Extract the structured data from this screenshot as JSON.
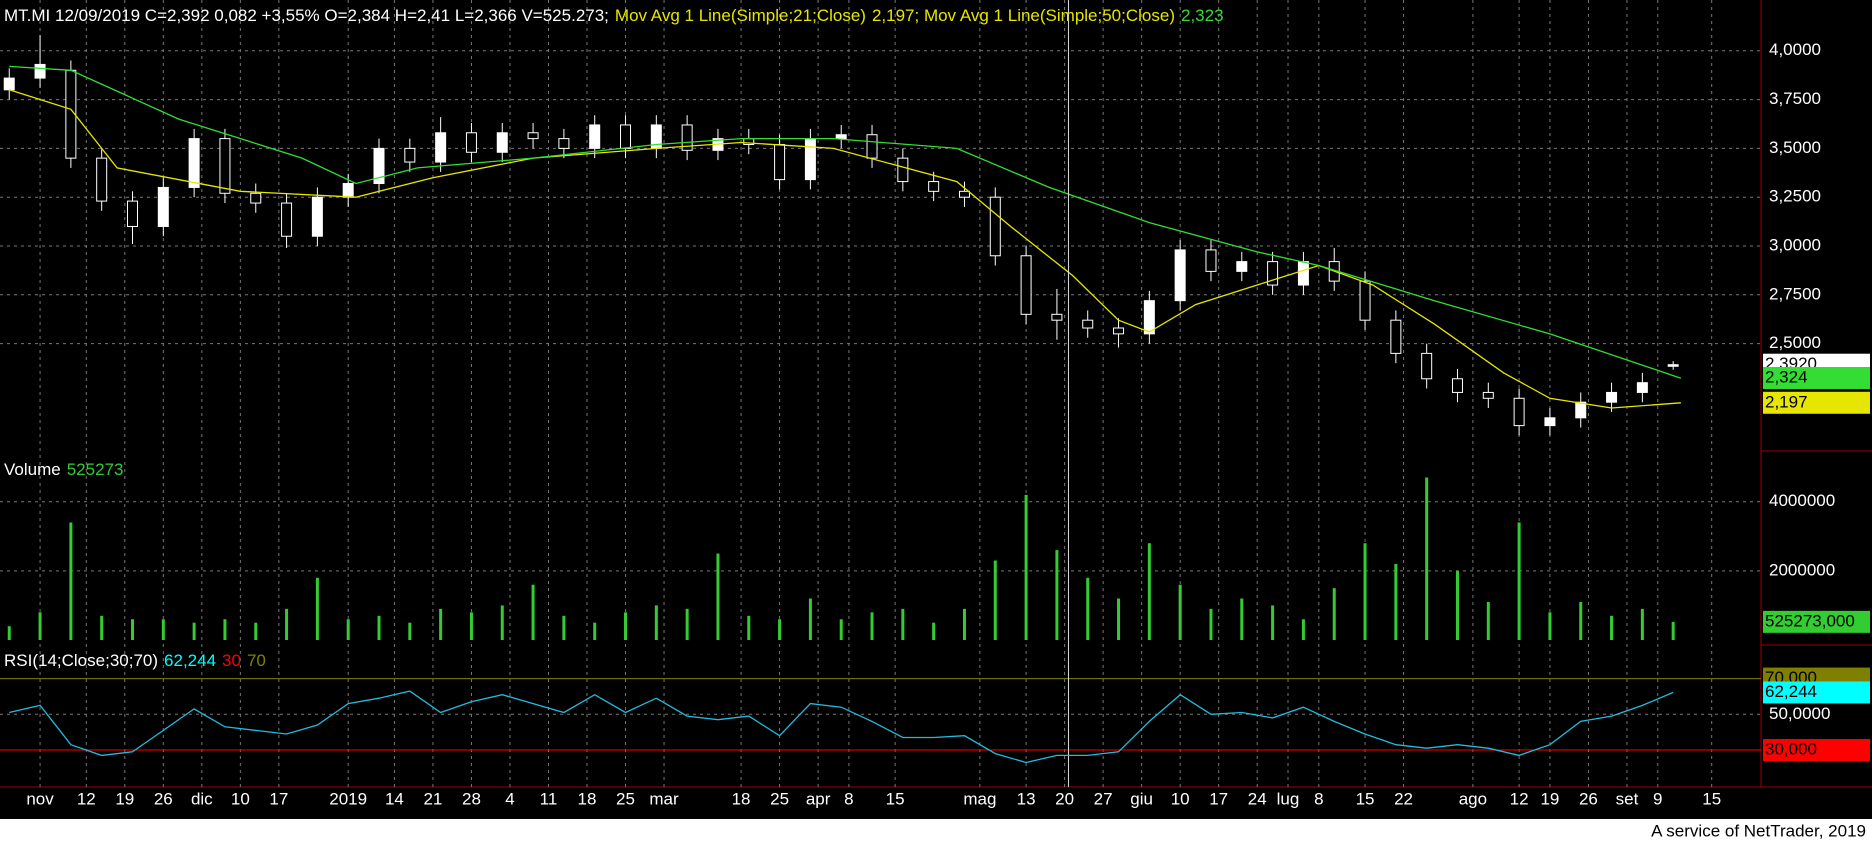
{
  "chart_data": [
    {
      "type": "candlestick",
      "title": "MT.MI 12/09/2019 C=2,392 0,082 +3,55% O=2,384 H=2,41 L=2,366 V=525.273;",
      "x": [
        0,
        4,
        8,
        12,
        16,
        20,
        24,
        28,
        32,
        36,
        40,
        44,
        48,
        52,
        56,
        60,
        64,
        68,
        72,
        76,
        80,
        84,
        88,
        92,
        96,
        100,
        104,
        108,
        112,
        116,
        120,
        124,
        128,
        132,
        136,
        140,
        144,
        148,
        152,
        156,
        160,
        164,
        168,
        172,
        176,
        180,
        184,
        188,
        192,
        196,
        200,
        204,
        208,
        212,
        216
      ],
      "open": [
        3.8,
        3.86,
        3.9,
        3.45,
        3.23,
        3.1,
        3.3,
        3.55,
        3.27,
        3.22,
        3.05,
        3.25,
        3.32,
        3.5,
        3.43,
        3.58,
        3.48,
        3.58,
        3.55,
        3.5,
        3.62,
        3.5,
        3.62,
        3.49,
        3.55,
        3.52,
        3.34,
        3.55,
        3.57,
        3.45,
        3.33,
        3.28,
        3.25,
        2.95,
        2.65,
        2.62,
        2.58,
        2.55,
        2.72,
        2.98,
        2.87,
        2.92,
        2.8,
        2.92,
        2.82,
        2.62,
        2.45,
        2.32,
        2.25,
        2.22,
        2.08,
        2.12,
        2.2,
        2.25,
        2.384
      ],
      "high": [
        3.91,
        4.08,
        3.95,
        3.5,
        3.28,
        3.35,
        3.6,
        3.6,
        3.32,
        3.27,
        3.3,
        3.37,
        3.55,
        3.55,
        3.66,
        3.63,
        3.63,
        3.63,
        3.6,
        3.67,
        3.67,
        3.67,
        3.67,
        3.6,
        3.6,
        3.57,
        3.6,
        3.62,
        3.62,
        3.5,
        3.38,
        3.33,
        3.3,
        3.0,
        2.78,
        2.67,
        2.63,
        2.77,
        3.03,
        3.03,
        2.97,
        2.97,
        2.97,
        2.99,
        2.87,
        2.67,
        2.5,
        2.37,
        2.3,
        2.27,
        2.17,
        2.25,
        2.3,
        2.35,
        2.41
      ],
      "low": [
        3.75,
        3.81,
        3.4,
        3.18,
        3.01,
        3.05,
        3.25,
        3.22,
        3.17,
        2.99,
        3.0,
        3.2,
        3.27,
        3.38,
        3.38,
        3.43,
        3.43,
        3.5,
        3.45,
        3.45,
        3.45,
        3.45,
        3.44,
        3.44,
        3.47,
        3.29,
        3.29,
        3.5,
        3.4,
        3.28,
        3.23,
        3.2,
        2.9,
        2.6,
        2.52,
        2.53,
        2.48,
        2.5,
        2.67,
        2.82,
        2.82,
        2.75,
        2.75,
        2.77,
        2.57,
        2.4,
        2.27,
        2.2,
        2.17,
        2.03,
        2.03,
        2.07,
        2.15,
        2.2,
        2.366
      ],
      "close": [
        3.86,
        3.93,
        3.45,
        3.23,
        3.1,
        3.3,
        3.55,
        3.27,
        3.22,
        3.05,
        3.25,
        3.32,
        3.5,
        3.43,
        3.58,
        3.48,
        3.58,
        3.55,
        3.5,
        3.62,
        3.5,
        3.62,
        3.49,
        3.55,
        3.52,
        3.34,
        3.55,
        3.57,
        3.45,
        3.33,
        3.28,
        3.25,
        2.95,
        2.65,
        2.62,
        2.58,
        2.55,
        2.72,
        2.98,
        2.87,
        2.92,
        2.8,
        2.92,
        2.82,
        2.62,
        2.45,
        2.32,
        2.25,
        2.22,
        2.08,
        2.12,
        2.2,
        2.25,
        2.3,
        2.392
      ],
      "color": "#ffffff",
      "last": {
        "value": 2.392,
        "label": "2,3920"
      },
      "legend_text_color": "#e6e600",
      "series": [
        {
          "name": "Mov Avg 1 Line(Simple;21;Close)",
          "color": "#e6e600",
          "x": [
            0,
            8,
            14,
            30,
            45,
            55,
            68,
            84,
            95,
            107,
            123,
            130,
            138,
            144,
            148,
            154,
            162,
            170,
            177,
            185,
            194,
            200,
            208,
            217
          ],
          "values": [
            3.8,
            3.7,
            3.4,
            3.28,
            3.25,
            3.35,
            3.45,
            3.5,
            3.53,
            3.5,
            3.33,
            3.1,
            2.85,
            2.62,
            2.56,
            2.7,
            2.8,
            2.9,
            2.8,
            2.6,
            2.35,
            2.22,
            2.17,
            2.197
          ],
          "legend_value": "2,197",
          "axis_label": {
            "value": 2.197,
            "label": "2,197"
          }
        },
        {
          "name": "; Mov Avg 1 Line(Simple;50;Close)",
          "color": "#33dd33",
          "x": [
            0,
            8,
            22,
            38,
            45,
            53,
            68,
            84,
            95,
            107,
            123,
            135,
            148,
            162,
            170,
            185,
            200,
            217
          ],
          "values": [
            3.92,
            3.9,
            3.65,
            3.45,
            3.32,
            3.4,
            3.45,
            3.52,
            3.55,
            3.55,
            3.5,
            3.3,
            3.12,
            2.97,
            2.9,
            2.72,
            2.55,
            2.323
          ],
          "legend_value": "2,323",
          "axis_label": {
            "value": 2.324,
            "label": "2,324"
          }
        }
      ],
      "xlim": [
        -1.2,
        227.4
      ],
      "ylim": [
        1.95,
        4.26
      ],
      "yticks": [
        {
          "value": 2.5,
          "label": "2,5000"
        },
        {
          "value": 2.75,
          "label": "2,7500"
        },
        {
          "value": 3.0,
          "label": "3,0000"
        },
        {
          "value": 3.25,
          "label": "3,2500"
        },
        {
          "value": 3.5,
          "label": "3,5000"
        },
        {
          "value": 3.75,
          "label": "3,7500"
        },
        {
          "value": 4.0,
          "label": "4,0000"
        }
      ],
      "grid": true,
      "cursor_x": 137.5
    },
    {
      "type": "bar",
      "title": "Volume",
      "title_value": "525273",
      "x": [
        0,
        4,
        8,
        12,
        16,
        20,
        24,
        28,
        32,
        36,
        40,
        44,
        48,
        52,
        56,
        60,
        64,
        68,
        72,
        76,
        80,
        84,
        88,
        92,
        96,
        100,
        104,
        108,
        112,
        116,
        120,
        124,
        128,
        132,
        136,
        140,
        144,
        148,
        152,
        156,
        160,
        164,
        168,
        172,
        176,
        180,
        184,
        188,
        192,
        196,
        200,
        204,
        208,
        212,
        216
      ],
      "values": [
        400000,
        800000,
        3400000,
        700000,
        600000,
        600000,
        500000,
        600000,
        500000,
        900000,
        1800000,
        600000,
        700000,
        500000,
        900000,
        800000,
        1000000,
        1600000,
        700000,
        500000,
        800000,
        1000000,
        900000,
        2500000,
        700000,
        600000,
        1200000,
        600000,
        800000,
        900000,
        500000,
        900000,
        2300000,
        4200000,
        2600000,
        1800000,
        1200000,
        2800000,
        1600000,
        900000,
        1200000,
        1000000,
        600000,
        1500000,
        2800000,
        2200000,
        4700000,
        2000000,
        1100000,
        3400000,
        800000,
        1100000,
        700000,
        900000,
        525273
      ],
      "color": "#33cc33",
      "last": {
        "value": 525273,
        "label": "525273,000"
      },
      "xlim": [
        -1.2,
        227.4
      ],
      "ylim": [
        0,
        5410000
      ],
      "yticks": [
        2000000,
        4000000
      ],
      "grid": true
    },
    {
      "type": "line",
      "title": "RSI(14;Close;30;70)",
      "series": [
        {
          "color": "#22bbdd",
          "x": [
            0,
            4,
            8,
            12,
            16,
            20,
            24,
            28,
            32,
            36,
            40,
            44,
            48,
            52,
            56,
            60,
            64,
            68,
            72,
            76,
            80,
            84,
            88,
            92,
            96,
            100,
            104,
            108,
            112,
            116,
            120,
            124,
            128,
            132,
            136,
            140,
            144,
            148,
            152,
            156,
            160,
            164,
            168,
            172,
            176,
            180,
            184,
            188,
            192,
            196,
            200,
            204,
            208,
            212,
            216
          ],
          "values": [
            51,
            55,
            33,
            27,
            29,
            41,
            53,
            43,
            41,
            39,
            44,
            56,
            59,
            63,
            51,
            57,
            61,
            56,
            51,
            61,
            51,
            59,
            49,
            47,
            49,
            38,
            56,
            54,
            46,
            37,
            37,
            38,
            28,
            23,
            27,
            27,
            29,
            46,
            61,
            50,
            51,
            48,
            54,
            46,
            39,
            33,
            31,
            33,
            31,
            27,
            33,
            46,
            49,
            55,
            62.244
          ],
          "legend_value": "62,244",
          "axis_label": {
            "value": 62.244,
            "label": "62,244"
          },
          "label_color": "#00ffff"
        }
      ],
      "levels": [
        {
          "value": 30,
          "label": "30,000",
          "legend": "30",
          "color": "#ff0000"
        },
        {
          "value": 70,
          "label": "70,000",
          "legend": "70",
          "color": "#808000"
        }
      ],
      "xlim": [
        -1.2,
        227.4
      ],
      "ylim": [
        9.3,
        86
      ],
      "yticks": [
        {
          "value": 50,
          "label": "50,0000"
        }
      ],
      "grid": true,
      "xticks": [
        {
          "value": 4,
          "label": "nov"
        },
        {
          "value": 10,
          "label": "12"
        },
        {
          "value": 15,
          "label": "19"
        },
        {
          "value": 20,
          "label": "26"
        },
        {
          "value": 25,
          "label": "dic"
        },
        {
          "value": 30,
          "label": "10"
        },
        {
          "value": 35,
          "label": "17"
        },
        {
          "value": 44,
          "label": "2019"
        },
        {
          "value": 50,
          "label": "14"
        },
        {
          "value": 55,
          "label": "21"
        },
        {
          "value": 60,
          "label": "28"
        },
        {
          "value": 65,
          "label": "4"
        },
        {
          "value": 70,
          "label": "11"
        },
        {
          "value": 75,
          "label": "18"
        },
        {
          "value": 80,
          "label": "25"
        },
        {
          "value": 85,
          "label": "mar"
        },
        {
          "value": 95,
          "label": "18"
        },
        {
          "value": 100,
          "label": "25"
        },
        {
          "value": 105,
          "label": "apr"
        },
        {
          "value": 109,
          "label": "8"
        },
        {
          "value": 115,
          "label": "15"
        },
        {
          "value": 126,
          "label": "mag"
        },
        {
          "value": 132,
          "label": "13"
        },
        {
          "value": 137,
          "label": "20"
        },
        {
          "value": 142,
          "label": "27"
        },
        {
          "value": 147,
          "label": "giu"
        },
        {
          "value": 152,
          "label": "10"
        },
        {
          "value": 157,
          "label": "17"
        },
        {
          "value": 162,
          "label": "24"
        },
        {
          "value": 166,
          "label": "lug"
        },
        {
          "value": 170,
          "label": "8"
        },
        {
          "value": 176,
          "label": "15"
        },
        {
          "value": 181,
          "label": "22"
        },
        {
          "value": 190,
          "label": "ago"
        },
        {
          "value": 196,
          "label": "12"
        },
        {
          "value": 200,
          "label": "19"
        },
        {
          "value": 205,
          "label": "26"
        },
        {
          "value": 210,
          "label": "set"
        },
        {
          "value": 214,
          "label": "9"
        },
        {
          "value": 221,
          "label": "15"
        }
      ]
    }
  ],
  "footer": {
    "text": "A service of NetTrader, 2019"
  }
}
